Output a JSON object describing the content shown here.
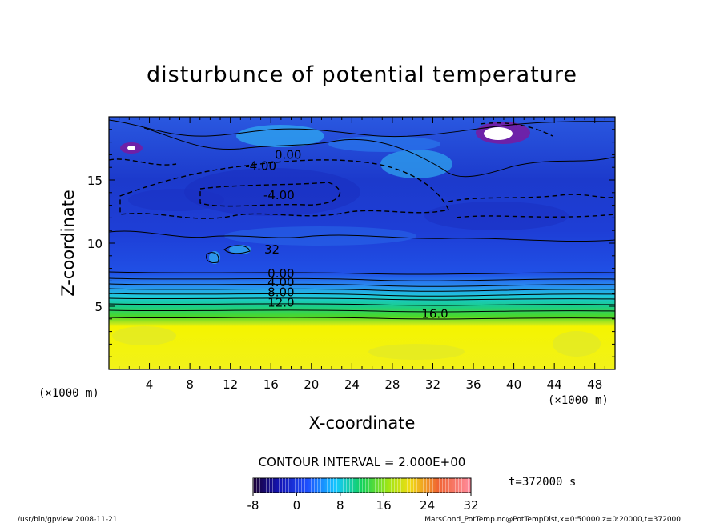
{
  "chart_data": {
    "type": "heatmap",
    "title": "disturbunce of potential temperature",
    "xlabel": "X-coordinate",
    "ylabel": "Z-coordinate",
    "x_unit_left": "(×1000 m)",
    "x_unit_right": "(×1000 m)",
    "xlim": [
      0,
      50
    ],
    "ylim": [
      0,
      20
    ],
    "x_ticks": [
      4,
      8,
      12,
      16,
      20,
      24,
      28,
      32,
      36,
      40,
      44,
      48
    ],
    "y_ticks": [
      5,
      10,
      15
    ],
    "contour_interval_text": "CONTOUR INTERVAL = 2.000E+00",
    "time_text": "t=372000 s",
    "colorbar": {
      "min": -8,
      "max": 32,
      "ticks": [
        -8,
        0,
        8,
        16,
        24,
        32
      ]
    },
    "contour_labels": [
      {
        "text": "0.00",
        "x": 17.7,
        "z": 17.0
      },
      {
        "text": "-4.00",
        "x": 15.0,
        "z": 16.1
      },
      {
        "text": "-4.00",
        "x": 16.8,
        "z": 13.8
      },
      {
        "text": "32",
        "x": 16.1,
        "z": 9.5
      },
      {
        "text": "0.00",
        "x": 17.0,
        "z": 7.6
      },
      {
        "text": "4.00",
        "x": 17.0,
        "z": 6.9
      },
      {
        "text": "8.00",
        "x": 17.0,
        "z": 6.1
      },
      {
        "text": "12.0",
        "x": 17.0,
        "z": 5.3
      },
      {
        "text": "16.0",
        "x": 32.2,
        "z": 4.4
      }
    ]
  },
  "footer": {
    "left": "/usr/bin/gpview   2008-11-21",
    "right": "MarsCond_PotTemp.nc@PotTempDist,x=0:50000,z=0:20000,t=372000"
  }
}
